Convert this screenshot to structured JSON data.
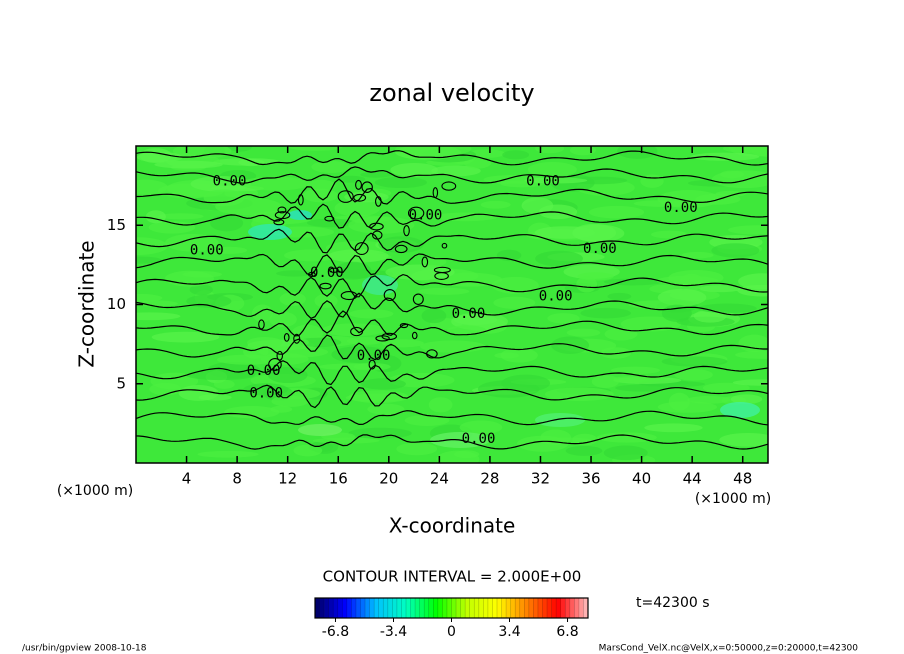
{
  "chart_data": {
    "type": "contour",
    "title": "zonal velocity",
    "x_label": "X-coordinate",
    "y_label": "Z-coordinate",
    "x_unit": "(×1000 m)",
    "y_unit": "(×1000 m)",
    "xlim": [
      0,
      50
    ],
    "xticks": [
      4,
      8,
      12,
      16,
      20,
      24,
      28,
      32,
      36,
      40,
      44,
      48
    ],
    "ylim": [
      0,
      20
    ],
    "yticks": [
      5,
      10,
      15
    ],
    "contour_interval": "CONTOUR INTERVAL = 2.000E+00",
    "contour_labels": [
      {
        "x": 7.4,
        "y": 17.75,
        "text": "0.00"
      },
      {
        "x": 32.2,
        "y": 17.75,
        "text": "0.00"
      },
      {
        "x": 43.1,
        "y": 16.1,
        "text": "0.00"
      },
      {
        "x": 22.9,
        "y": 15.6,
        "text": "0.00"
      },
      {
        "x": 5.6,
        "y": 13.4,
        "text": "0.00"
      },
      {
        "x": 36.7,
        "y": 13.5,
        "text": "0.00"
      },
      {
        "x": 15.1,
        "y": 12.0,
        "text": "0.00"
      },
      {
        "x": 33.2,
        "y": 10.5,
        "text": "0.00"
      },
      {
        "x": 26.3,
        "y": 9.4,
        "text": "0.00"
      },
      {
        "x": 18.8,
        "y": 6.75,
        "text": "0.00"
      },
      {
        "x": 10.1,
        "y": 5.8,
        "text": "0.00"
      },
      {
        "x": 10.3,
        "y": 4.4,
        "text": "0.00"
      },
      {
        "x": 27.1,
        "y": 1.5,
        "text": "0.00"
      }
    ],
    "colorbar": {
      "lim": [
        -8,
        8
      ],
      "ticks": [
        -6.8,
        -3.4,
        0,
        3.4,
        6.8
      ],
      "colors": [
        "#000060",
        "#0000ff",
        "#00c0ff",
        "#00ffc0",
        "#00ff00",
        "#c0ff00",
        "#ffff00",
        "#ff8000",
        "#ff0000",
        "#ffc0c0"
      ]
    },
    "time_label": "t=42300 s",
    "footer_left": "/usr/bin/gpview  2008-10-18",
    "footer_right": "MarsCond_VelX.nc@VelX,x=0:50000,z=0:20000,t=42300"
  }
}
